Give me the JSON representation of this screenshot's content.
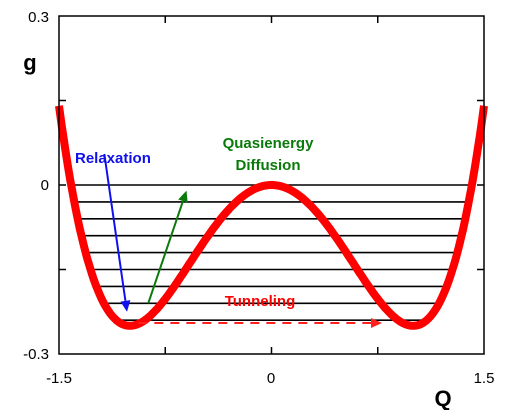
{
  "chart_data": {
    "type": "line",
    "xlabel": "Q",
    "ylabel": "g",
    "xlim": [
      -1.5,
      1.5
    ],
    "ylim": [
      -0.3,
      0.3
    ],
    "x_ticks": [
      "-1.5",
      "0",
      "1.5"
    ],
    "y_ticks": [
      "0.3",
      "0",
      "-0.3"
    ],
    "curve": {
      "formula": "g = Q^4 - 2 Q^2 (scaled double-well)",
      "scale": 0.25,
      "min_at": [
        -1,
        1
      ],
      "min_value": -0.25,
      "barrier_value": 0,
      "color": "#ff0000"
    },
    "levels_g": [
      0,
      -0.03,
      -0.06,
      -0.09,
      -0.12,
      -0.15,
      -0.18,
      -0.21,
      -0.24
    ],
    "level_color": "#000000",
    "annotations": [
      {
        "text": "Relaxation",
        "color": "#1010ee"
      },
      {
        "text": "Quasienergy",
        "color": "#0a7a0a"
      },
      {
        "text": "Diffusion",
        "color": "#0a7a0a"
      },
      {
        "text": "Tunneling",
        "color": "#ff0000"
      }
    ],
    "arrows": [
      {
        "name": "relaxation",
        "from": [
          -1.18,
          0.055
        ],
        "to": [
          -1.02,
          -0.225
        ],
        "style": "solid",
        "color": "#1010ee"
      },
      {
        "name": "quasienergy-diffusion",
        "from": [
          -0.87,
          -0.21
        ],
        "to": [
          -0.6,
          -0.01
        ],
        "style": "solid",
        "color": "#0a7a0a"
      },
      {
        "name": "tunneling",
        "from": [
          -0.94,
          -0.245
        ],
        "to": [
          0.78,
          -0.245
        ],
        "style": "dashed",
        "color": "#ff2020"
      }
    ]
  }
}
